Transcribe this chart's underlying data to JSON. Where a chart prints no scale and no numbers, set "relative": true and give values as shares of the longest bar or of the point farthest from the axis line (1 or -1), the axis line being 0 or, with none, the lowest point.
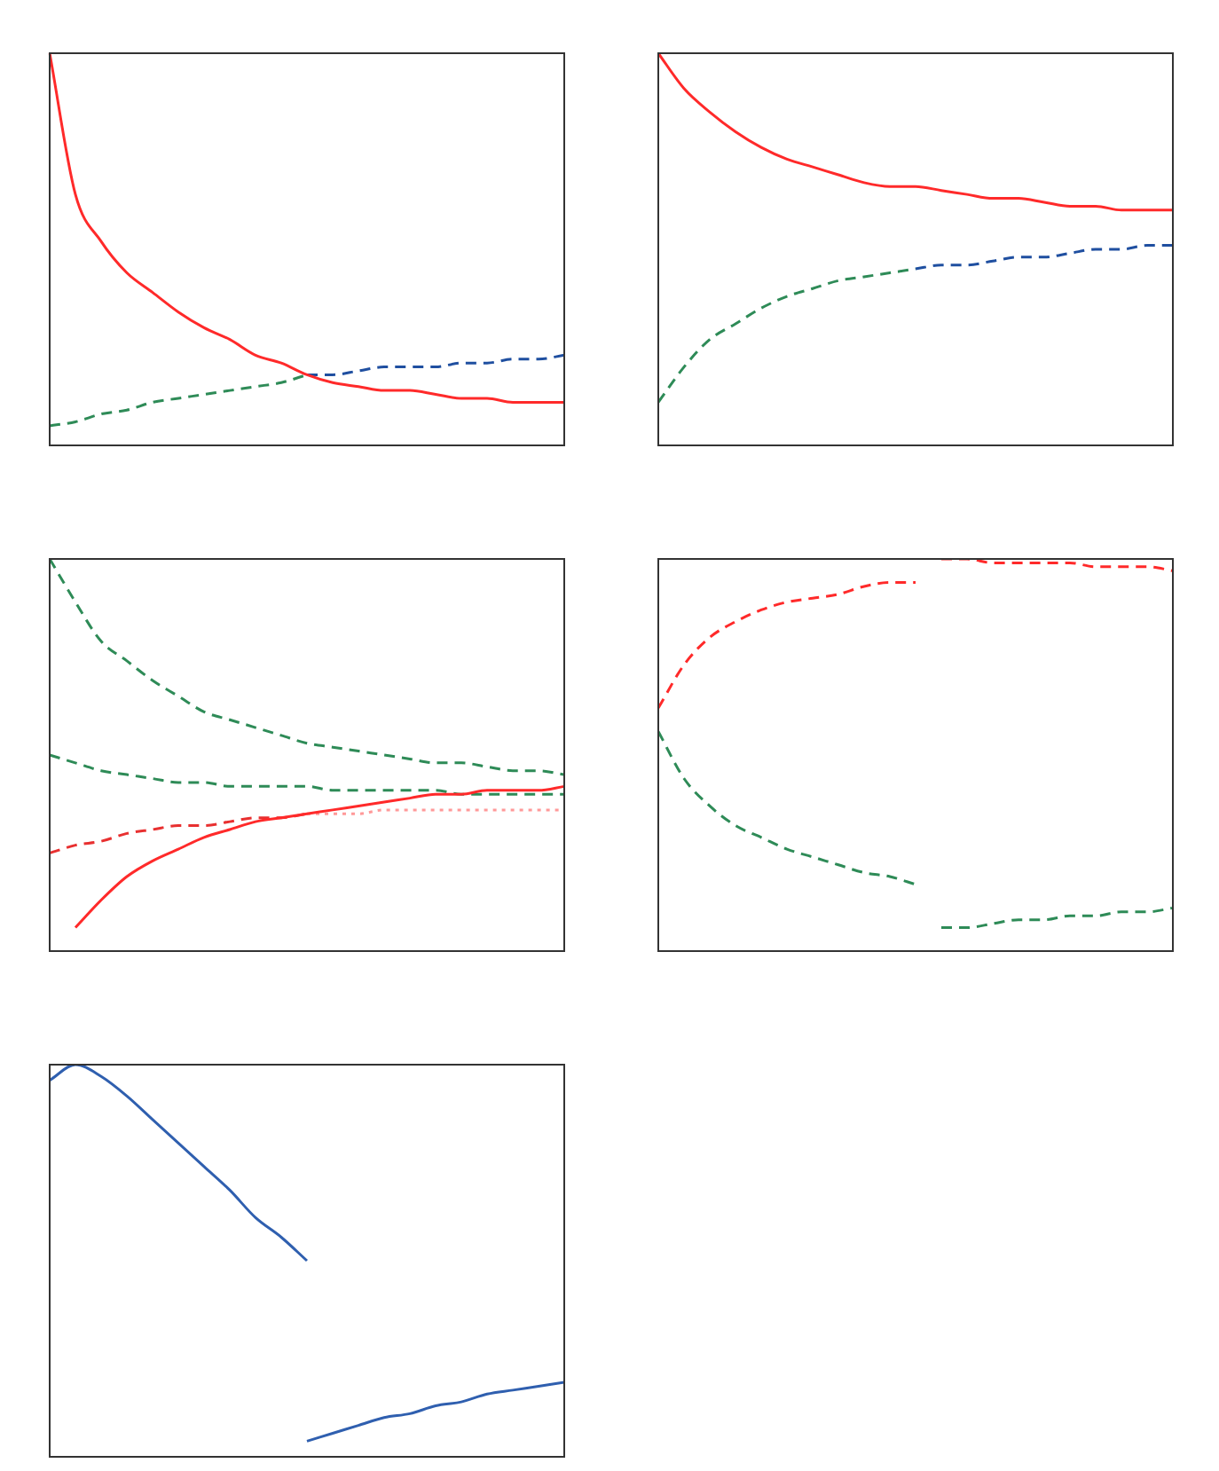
{
  "chart_data": [
    {
      "type": "line",
      "relative": true,
      "categories": [
        null,
        null,
        null,
        null,
        null,
        null,
        null,
        null,
        null,
        null,
        null,
        null,
        null,
        null,
        null,
        null,
        null,
        null,
        null,
        null,
        null
      ],
      "series": [
        {
          "color": "#ff2a2a",
          "line_style": "solid",
          "values": [
            1,
            0.64,
            0.52,
            0.44,
            0.39,
            0.34,
            0.3,
            0.27,
            0.23,
            0.21,
            0.18,
            0.16,
            0.15,
            0.14,
            0.14,
            0.13,
            0.12,
            0.12,
            0.11,
            0.11,
            0.11
          ]
        },
        {
          "color": "#2e8b57",
          "line_style": "dashed",
          "values": [
            0.05,
            0.06,
            0.08,
            0.09,
            0.11,
            0.12,
            0.13,
            0.14,
            0.15,
            0.16,
            0.18,
            null,
            null,
            null,
            null,
            null,
            null,
            null,
            null,
            null,
            null
          ]
        },
        {
          "color": "#1f4fa0",
          "line_style": "dashed",
          "values": [
            null,
            null,
            null,
            null,
            null,
            null,
            null,
            null,
            null,
            null,
            0.18,
            0.18,
            0.19,
            0.2,
            0.2,
            0.2,
            0.21,
            0.21,
            0.22,
            0.22,
            0.23
          ]
        }
      ]
    },
    {
      "type": "line",
      "relative": true,
      "categories": [
        null,
        null,
        null,
        null,
        null,
        null,
        null,
        null,
        null,
        null,
        null,
        null,
        null,
        null,
        null,
        null,
        null,
        null,
        null,
        null,
        null
      ],
      "series": [
        {
          "color": "#ff2a2a",
          "line_style": "solid",
          "values": [
            1,
            0.91,
            0.85,
            0.8,
            0.76,
            0.73,
            0.71,
            0.69,
            0.67,
            0.66,
            0.66,
            0.65,
            0.64,
            0.63,
            0.63,
            0.62,
            0.61,
            0.61,
            0.6,
            0.6,
            0.6
          ]
        },
        {
          "color": "#2e8b57",
          "line_style": "dashed",
          "values": [
            0.11,
            0.2,
            0.27,
            0.31,
            0.35,
            0.38,
            0.4,
            0.42,
            0.43,
            0.44,
            0.45,
            null,
            null,
            null,
            null,
            null,
            null,
            null,
            null,
            null,
            null
          ]
        },
        {
          "color": "#1f4fa0",
          "line_style": "dashed",
          "values": [
            null,
            null,
            null,
            null,
            null,
            null,
            null,
            null,
            null,
            null,
            0.45,
            0.46,
            0.46,
            0.47,
            0.48,
            0.48,
            0.49,
            0.5,
            0.5,
            0.51,
            0.51
          ]
        }
      ]
    },
    {
      "type": "line",
      "relative": true,
      "categories": [
        null,
        null,
        null,
        null,
        null,
        null,
        null,
        null,
        null,
        null,
        null,
        null,
        null,
        null,
        null,
        null,
        null,
        null,
        null,
        null,
        null
      ],
      "series": [
        {
          "color": "#ff2a2a",
          "line_style": "solid",
          "values": [
            null,
            0.06,
            0.13,
            0.19,
            0.23,
            0.26,
            0.29,
            0.31,
            0.33,
            0.34,
            0.35,
            0.36,
            0.37,
            0.38,
            0.39,
            0.4,
            0.4,
            0.41,
            0.41,
            0.41,
            0.42
          ]
        },
        {
          "color": "#2e8b57",
          "line_style": "dashed",
          "values": [
            1,
            0.89,
            0.79,
            0.74,
            0.69,
            0.65,
            0.61,
            0.59,
            0.57,
            0.55,
            0.53,
            0.52,
            0.51,
            0.5,
            0.49,
            0.48,
            0.48,
            0.47,
            0.46,
            0.46,
            0.45
          ]
        },
        {
          "color": "#ff9999",
          "line_style": "dotted",
          "values": [
            null,
            null,
            null,
            null,
            null,
            null,
            null,
            null,
            null,
            null,
            0.35,
            0.35,
            0.35,
            0.36,
            0.36,
            0.36,
            0.36,
            0.36,
            0.36,
            0.36,
            0.36
          ]
        },
        {
          "color": "#2e8b57",
          "line_style": "dashed",
          "values": [
            0.5,
            0.48,
            0.46,
            0.45,
            0.44,
            0.43,
            0.43,
            0.42,
            0.42,
            0.42,
            0.42,
            0.41,
            0.41,
            0.41,
            0.41,
            0.41,
            0.4,
            0.4,
            0.4,
            0.4,
            0.4
          ]
        },
        {
          "color": "#e83030",
          "line_style": "dashed",
          "values": [
            0.25,
            0.27,
            0.28,
            0.3,
            0.31,
            0.32,
            0.32,
            0.33,
            0.34,
            0.34,
            0.35,
            null,
            null,
            null,
            null,
            null,
            null,
            null,
            null,
            null,
            null
          ]
        }
      ]
    },
    {
      "type": "line",
      "relative": true,
      "categories": [
        null,
        null,
        null,
        null,
        null,
        null,
        null,
        null,
        null,
        null,
        null,
        null,
        null,
        null,
        null,
        null,
        null,
        null,
        null,
        null,
        null
      ],
      "series": [
        {
          "color": "#ff2a2a",
          "line_style": "dashed",
          "values": [
            0.62,
            0.73,
            0.8,
            0.84,
            0.87,
            0.89,
            0.9,
            0.91,
            0.93,
            0.94,
            0.94,
            null,
            null,
            null,
            null,
            null,
            null,
            null,
            null,
            null,
            null
          ]
        },
        {
          "color": "#ff2a2a",
          "line_style": "dashed",
          "values": [
            null,
            null,
            null,
            null,
            null,
            null,
            null,
            null,
            null,
            null,
            null,
            1,
            1,
            0.99,
            0.99,
            0.99,
            0.99,
            0.98,
            0.98,
            0.98,
            0.97
          ]
        },
        {
          "color": "#2e8b57",
          "line_style": "dashed",
          "values": [
            0.56,
            0.44,
            0.37,
            0.32,
            0.29,
            0.26,
            0.24,
            0.22,
            0.2,
            0.19,
            0.17,
            null,
            null,
            null,
            null,
            null,
            null,
            null,
            null,
            null,
            null
          ]
        },
        {
          "color": "#2e8b57",
          "line_style": "dashed",
          "values": [
            null,
            null,
            null,
            null,
            null,
            null,
            null,
            null,
            null,
            null,
            null,
            0.06,
            0.06,
            0.07,
            0.08,
            0.08,
            0.09,
            0.09,
            0.1,
            0.1,
            0.11
          ]
        }
      ]
    },
    {
      "type": "line",
      "relative": true,
      "categories": [
        null,
        null,
        null,
        null,
        null,
        null,
        null,
        null,
        null,
        null,
        null,
        null,
        null,
        null,
        null,
        null,
        null,
        null,
        null,
        null,
        null
      ],
      "series": [
        {
          "color": "#2f5faf",
          "line_style": "solid",
          "values": [
            0.96,
            1,
            0.97,
            0.92,
            0.86,
            0.8,
            0.74,
            0.68,
            0.61,
            0.56,
            0.5,
            null,
            null,
            null,
            null,
            null,
            null,
            null,
            null,
            null,
            null
          ]
        },
        {
          "color": "#2f5faf",
          "line_style": "solid",
          "values": [
            null,
            null,
            null,
            null,
            null,
            null,
            null,
            null,
            null,
            null,
            0.04,
            0.06,
            0.08,
            0.1,
            0.11,
            0.13,
            0.14,
            0.16,
            0.17,
            0.18,
            0.19
          ]
        }
      ]
    }
  ]
}
